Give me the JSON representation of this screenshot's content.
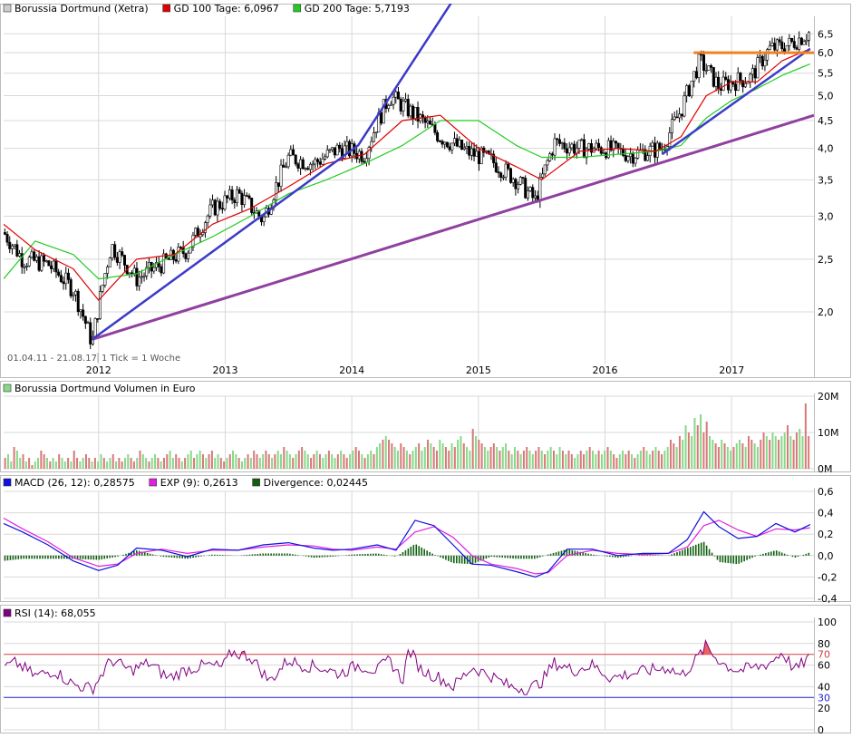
{
  "colors": {
    "price_candle": "#000000",
    "gd100": "#e00000",
    "gd200": "#22cc22",
    "trend_blue": "#3b3bc8",
    "trend_purple": "#9040a0",
    "resistance": "#f08020",
    "volume_up": "#88d888",
    "volume_down": "#d87878",
    "macd": "#1010e0",
    "exp": "#e020e0",
    "divergence": "#106010",
    "rsi": "#800080",
    "rsi_line": "#d04040",
    "grid": "#d8d8d8"
  },
  "chart_data": [
    {
      "type": "line",
      "title": "Borussia Dortmund (Xetra)",
      "legend": [
        {
          "label": "Borussia Dortmund (Xetra)",
          "color": "#cccccc"
        },
        {
          "label": "GD 100 Tage: 6,0967",
          "color": "#e00000"
        },
        {
          "label": "GD 200 Tage: 5,7193",
          "color": "#22cc22"
        }
      ],
      "date_range_label": "01.04.11 - 21.08.17",
      "tick_label": "1 Tick = 1 Woche",
      "x_ticks": [
        "2012",
        "2013",
        "2014",
        "2015",
        "2016",
        "2017"
      ],
      "y_ticks": [
        "2,0",
        "2,5",
        "3,0",
        "3,5",
        "4,0",
        "4,5",
        "5,0",
        "5,5",
        "6,0",
        "6,5"
      ],
      "y_scale": "log",
      "ylim": [
        1.6,
        7.0
      ],
      "series": [
        {
          "name": "Borussia Dortmund (Xetra)",
          "x": [
            2011.25,
            2011.4,
            2011.6,
            2011.8,
            2011.95,
            2012.1,
            2012.3,
            2012.5,
            2012.7,
            2012.9,
            2013.1,
            2013.3,
            2013.5,
            2013.7,
            2013.9,
            2014.1,
            2014.3,
            2014.5,
            2014.7,
            2014.9,
            2015.1,
            2015.3,
            2015.45,
            2015.6,
            2015.8,
            2016.0,
            2016.2,
            2016.45,
            2016.6,
            2016.75,
            2016.9,
            2017.0,
            2017.15,
            2017.3,
            2017.45,
            2017.62
          ],
          "values": [
            2.8,
            2.5,
            2.45,
            2.2,
            1.75,
            2.65,
            2.3,
            2.45,
            2.6,
            3.1,
            3.3,
            2.95,
            3.85,
            3.75,
            4.0,
            3.9,
            5.0,
            4.6,
            4.2,
            3.95,
            3.8,
            3.5,
            3.2,
            4.1,
            4.0,
            4.0,
            3.9,
            4.0,
            4.7,
            5.8,
            5.2,
            5.3,
            5.4,
            6.1,
            6.2,
            6.55
          ]
        },
        {
          "name": "GD 100 Tage",
          "x": [
            2011.25,
            2011.5,
            2011.8,
            2012.0,
            2012.3,
            2012.6,
            2012.9,
            2013.2,
            2013.5,
            2013.8,
            2014.1,
            2014.4,
            2014.7,
            2015.0,
            2015.3,
            2015.5,
            2015.8,
            2016.1,
            2016.4,
            2016.6,
            2016.8,
            2017.0,
            2017.2,
            2017.4,
            2017.62
          ],
          "values": [
            2.9,
            2.6,
            2.4,
            2.1,
            2.5,
            2.55,
            2.9,
            3.1,
            3.4,
            3.75,
            3.9,
            4.5,
            4.6,
            4.0,
            3.7,
            3.5,
            3.95,
            4.0,
            3.95,
            4.2,
            5.0,
            5.3,
            5.3,
            5.8,
            6.1
          ]
        },
        {
          "name": "GD 200 Tage",
          "x": [
            2011.25,
            2011.5,
            2011.8,
            2012.0,
            2012.3,
            2012.6,
            2012.9,
            2013.2,
            2013.5,
            2013.8,
            2014.1,
            2014.4,
            2014.7,
            2015.0,
            2015.3,
            2015.5,
            2015.8,
            2016.1,
            2016.4,
            2016.6,
            2016.8,
            2017.0,
            2017.2,
            2017.4,
            2017.62
          ],
          "values": [
            2.3,
            2.7,
            2.55,
            2.3,
            2.35,
            2.55,
            2.75,
            3.0,
            3.3,
            3.5,
            3.75,
            4.05,
            4.5,
            4.5,
            4.05,
            3.85,
            3.85,
            3.9,
            3.95,
            4.05,
            4.55,
            4.9,
            5.15,
            5.45,
            5.72
          ]
        },
        {
          "name": "Trend 1",
          "x": [
            2011.95,
            2014.05,
            2014.8
          ],
          "values": [
            1.78,
            4.05,
            7.5
          ]
        },
        {
          "name": "Trend 2",
          "x": [
            2011.95,
            2017.65
          ],
          "values": [
            1.78,
            4.6
          ]
        },
        {
          "name": "Trend 3",
          "x": [
            2016.45,
            2017.62
          ],
          "values": [
            3.9,
            6.1
          ]
        },
        {
          "name": "Resistance",
          "x": [
            2016.7,
            2017.65
          ],
          "values": [
            6.0,
            6.0
          ]
        }
      ]
    },
    {
      "type": "bar",
      "title": "Borussia Dortmund Volumen in Euro",
      "legend": [
        {
          "label": "Borussia Dortmund Volumen in Euro",
          "color": "#88d888"
        }
      ],
      "y_ticks": [
        "0M",
        "10M",
        "20M"
      ],
      "ylim": [
        0,
        20
      ],
      "series": [
        {
          "name": "Volumen",
          "x_start": 2011.25,
          "x_end": 2017.62,
          "values": [
            3,
            4,
            2,
            6,
            5,
            3,
            4,
            2,
            3,
            1,
            2,
            3,
            5,
            4,
            3,
            2,
            3,
            2,
            4,
            3,
            2,
            3,
            2,
            5,
            3,
            2,
            3,
            4,
            3,
            2,
            3,
            2,
            4,
            3,
            2,
            3,
            4,
            2,
            3,
            2,
            3,
            4,
            3,
            2,
            3,
            5,
            4,
            3,
            2,
            3,
            4,
            3,
            2,
            3,
            4,
            5,
            3,
            4,
            3,
            2,
            3,
            4,
            5,
            3,
            4,
            5,
            4,
            3,
            4,
            5,
            3,
            4,
            3,
            2,
            3,
            4,
            5,
            4,
            3,
            2,
            3,
            4,
            3,
            5,
            4,
            3,
            4,
            5,
            4,
            3,
            4,
            5,
            4,
            6,
            5,
            4,
            3,
            4,
            5,
            6,
            5,
            4,
            3,
            4,
            5,
            4,
            3,
            4,
            5,
            4,
            3,
            4,
            5,
            4,
            3,
            4,
            5,
            6,
            5,
            4,
            3,
            4,
            5,
            4,
            6,
            7,
            8,
            9,
            8,
            7,
            6,
            5,
            7,
            6,
            5,
            4,
            5,
            6,
            7,
            5,
            6,
            8,
            7,
            6,
            5,
            8,
            7,
            6,
            5,
            7,
            6,
            8,
            9,
            7,
            6,
            5,
            11,
            9,
            8,
            7,
            6,
            5,
            6,
            7,
            6,
            5,
            6,
            7,
            5,
            4,
            6,
            5,
            4,
            5,
            6,
            5,
            4,
            5,
            6,
            5,
            4,
            5,
            6,
            5,
            4,
            6,
            5,
            4,
            5,
            4,
            3,
            4,
            5,
            4,
            5,
            6,
            5,
            4,
            5,
            4,
            5,
            6,
            5,
            4,
            3,
            4,
            5,
            4,
            5,
            4,
            3,
            4,
            5,
            6,
            5,
            4,
            5,
            6,
            5,
            4,
            5,
            6,
            8,
            7,
            6,
            9,
            8,
            12,
            10,
            9,
            14,
            12,
            15,
            10,
            13,
            9,
            8,
            7,
            6,
            8,
            7,
            6,
            5,
            6,
            7,
            8,
            7,
            6,
            9,
            8,
            7,
            6,
            8,
            10,
            9,
            8,
            10,
            9,
            8,
            9,
            10,
            12,
            9,
            8,
            10,
            11,
            9,
            18,
            9
          ]
        }
      ]
    },
    {
      "type": "line",
      "title": "MACD",
      "legend": [
        {
          "label": "MACD (26, 12): 0,28575",
          "color": "#1010e0"
        },
        {
          "label": "EXP (9): 0,2613",
          "color": "#e020e0"
        },
        {
          "label": "Divergence: 0,02445",
          "color": "#106010"
        }
      ],
      "y_ticks": [
        "0,6",
        "0,4",
        "0,2",
        "0,0",
        "-0,2",
        "-0,4"
      ],
      "ylim": [
        -0.4,
        0.6
      ],
      "series": [
        {
          "name": "MACD (26, 12)",
          "x": [
            2011.25,
            2011.4,
            2011.6,
            2011.8,
            2012.0,
            2012.15,
            2012.3,
            2012.5,
            2012.7,
            2012.9,
            2013.1,
            2013.3,
            2013.5,
            2013.7,
            2013.85,
            2014.0,
            2014.2,
            2014.35,
            2014.5,
            2014.65,
            2014.8,
            2014.95,
            2015.1,
            2015.3,
            2015.45,
            2015.55,
            2015.7,
            2015.9,
            2016.1,
            2016.3,
            2016.5,
            2016.65,
            2016.78,
            2016.9,
            2017.05,
            2017.2,
            2017.35,
            2017.5,
            2017.62
          ],
          "values": [
            0.3,
            0.22,
            0.1,
            -0.05,
            -0.14,
            -0.09,
            0.07,
            0.05,
            -0.01,
            0.06,
            0.05,
            0.1,
            0.12,
            0.07,
            0.05,
            0.06,
            0.1,
            0.05,
            0.33,
            0.28,
            0.1,
            -0.08,
            -0.09,
            -0.15,
            -0.2,
            -0.15,
            0.06,
            0.06,
            0.0,
            0.02,
            0.02,
            0.15,
            0.41,
            0.27,
            0.16,
            0.18,
            0.3,
            0.22,
            0.29
          ]
        },
        {
          "name": "EXP (9)",
          "x": [
            2011.25,
            2011.4,
            2011.6,
            2011.8,
            2012.0,
            2012.15,
            2012.3,
            2012.5,
            2012.7,
            2012.9,
            2013.1,
            2013.3,
            2013.5,
            2013.7,
            2013.85,
            2014.0,
            2014.2,
            2014.35,
            2014.5,
            2014.65,
            2014.8,
            2014.95,
            2015.1,
            2015.3,
            2015.45,
            2015.55,
            2015.7,
            2015.9,
            2016.1,
            2016.3,
            2016.5,
            2016.65,
            2016.78,
            2016.9,
            2017.05,
            2017.2,
            2017.35,
            2017.5,
            2017.62
          ],
          "values": [
            0.35,
            0.25,
            0.13,
            -0.02,
            -0.1,
            -0.08,
            0.02,
            0.06,
            0.02,
            0.05,
            0.05,
            0.08,
            0.1,
            0.09,
            0.06,
            0.05,
            0.08,
            0.06,
            0.22,
            0.27,
            0.17,
            0.0,
            -0.08,
            -0.12,
            -0.17,
            -0.16,
            0.0,
            0.05,
            0.02,
            0.01,
            0.02,
            0.08,
            0.28,
            0.33,
            0.24,
            0.18,
            0.25,
            0.24,
            0.26
          ]
        }
      ]
    },
    {
      "type": "line",
      "title": "RSI",
      "legend": [
        {
          "label": "RSI (14): 68,055",
          "color": "#800080"
        }
      ],
      "y_ticks": [
        "100",
        "80",
        "60",
        "40",
        "20",
        "0"
      ],
      "ylim": [
        0,
        100
      ],
      "reference_lines": [
        {
          "label": "70",
          "value": 70,
          "color": "#d04040"
        },
        {
          "label": "30",
          "value": 30,
          "color": "#2020d0"
        }
      ],
      "series": [
        {
          "name": "RSI (14)",
          "x": [
            2011.25,
            2011.35,
            2011.5,
            2011.65,
            2011.8,
            2011.95,
            2012.1,
            2012.25,
            2012.4,
            2012.55,
            2012.7,
            2012.85,
            2012.98,
            2013.05,
            2013.2,
            2013.35,
            2013.5,
            2013.6,
            2013.75,
            2013.9,
            2014.05,
            2014.2,
            2014.3,
            2014.4,
            2014.45,
            2014.55,
            2014.7,
            2014.8,
            2014.95,
            2015.1,
            2015.25,
            2015.4,
            2015.5,
            2015.6,
            2015.75,
            2015.9,
            2016.05,
            2016.2,
            2016.35,
            2016.5,
            2016.6,
            2016.7,
            2016.8,
            2016.85,
            2016.95,
            2017.05,
            2017.2,
            2017.3,
            2017.4,
            2017.5,
            2017.62
          ],
          "values": [
            58,
            62,
            50,
            55,
            42,
            38,
            65,
            55,
            62,
            48,
            56,
            60,
            58,
            72,
            68,
            45,
            65,
            60,
            58,
            52,
            60,
            55,
            65,
            45,
            75,
            55,
            48,
            40,
            58,
            50,
            40,
            38,
            45,
            62,
            55,
            60,
            48,
            52,
            55,
            58,
            50,
            62,
            78,
            70,
            60,
            55,
            58,
            62,
            72,
            55,
            68
          ]
        }
      ]
    }
  ]
}
